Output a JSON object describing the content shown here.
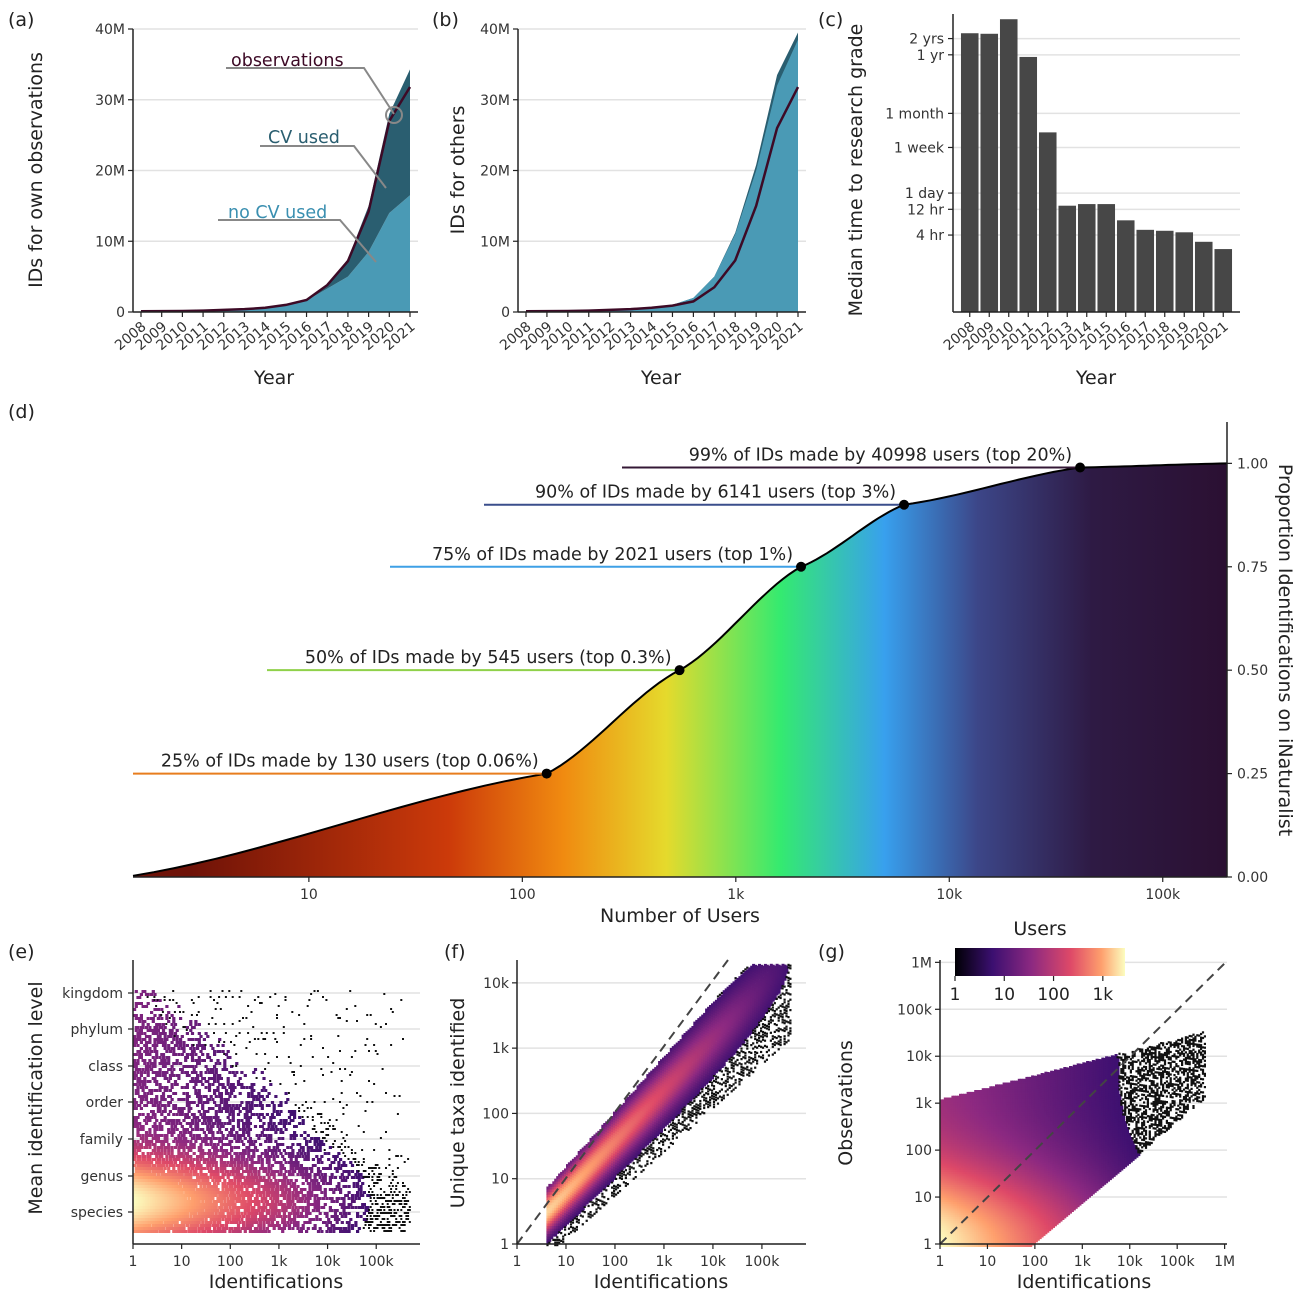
{
  "chart_data": [
    {
      "panel": "(a)",
      "type": "area",
      "xlabel": "Year",
      "ylabel": "IDs for own observations",
      "x": [
        "2008",
        "2009",
        "2010",
        "2011",
        "2012",
        "2013",
        "2014",
        "2015",
        "2016",
        "2017",
        "2018",
        "2019",
        "2020",
        "2021"
      ],
      "ylim": [
        0,
        40000000
      ],
      "ytick_values": [
        0,
        10000000,
        20000000,
        30000000,
        40000000
      ],
      "ytick_labels": [
        "0",
        "10M",
        "20M",
        "30M",
        "40M"
      ],
      "grid": "horizontal",
      "series": [
        {
          "name": "no CV used",
          "type": "area",
          "color": "#4a9ab5",
          "values": [
            0.1,
            0.1,
            0.15,
            0.2,
            0.3,
            0.4,
            0.6,
            0.9,
            1.6,
            3.3,
            5.0,
            8.5,
            14.0,
            16.5
          ],
          "unit": "M"
        },
        {
          "name": "CV used",
          "type": "area",
          "color": "#2a5e70",
          "values": [
            0,
            0,
            0,
            0,
            0,
            0,
            0,
            0,
            0.1,
            0.5,
            2.5,
            6.5,
            14.0,
            17.8
          ],
          "unit": "M",
          "stacked": true
        },
        {
          "name": "observations",
          "type": "line",
          "color": "#3d0a26",
          "values": [
            0.1,
            0.12,
            0.15,
            0.2,
            0.3,
            0.4,
            0.6,
            1.0,
            1.7,
            3.8,
            7.2,
            14.2,
            27.0,
            31.8
          ],
          "unit": "M"
        }
      ]
    },
    {
      "panel": "(b)",
      "type": "area",
      "xlabel": "Year",
      "ylabel": "IDs for others",
      "x": [
        "2008",
        "2009",
        "2010",
        "2011",
        "2012",
        "2013",
        "2014",
        "2015",
        "2016",
        "2017",
        "2018",
        "2019",
        "2020",
        "2021"
      ],
      "ylim": [
        0,
        40000000
      ],
      "ytick_values": [
        0,
        10000000,
        20000000,
        30000000,
        40000000
      ],
      "ytick_labels": [
        "0",
        "10M",
        "20M",
        "30M",
        "40M"
      ],
      "grid": "horizontal",
      "series": [
        {
          "type": "area",
          "color": "#4a9ab5",
          "values": [
            0.1,
            0.1,
            0.15,
            0.2,
            0.3,
            0.4,
            0.6,
            1.0,
            2.0,
            5.0,
            11.0,
            20.0,
            32.0,
            38.5
          ],
          "unit": "M"
        },
        {
          "type": "area",
          "color": "#2a5e70",
          "values": [
            0.1,
            0.1,
            0.15,
            0.2,
            0.3,
            0.4,
            0.6,
            1.0,
            2.0,
            5.0,
            11.2,
            20.8,
            33.5,
            39.5
          ],
          "unit": "M"
        },
        {
          "type": "line",
          "color": "#3d0a26",
          "values": [
            0.1,
            0.12,
            0.15,
            0.2,
            0.3,
            0.4,
            0.6,
            0.9,
            1.5,
            3.5,
            7.3,
            15.0,
            26.0,
            31.8
          ],
          "unit": "M"
        }
      ]
    },
    {
      "panel": "(c)",
      "type": "bar",
      "xlabel": "Year",
      "ylabel": "Median time to research grade",
      "categories": [
        "2008",
        "2009",
        "2010",
        "2011",
        "2012",
        "2013",
        "2014",
        "2015",
        "2016",
        "2017",
        "2018",
        "2019",
        "2020",
        "2021"
      ],
      "values_hours": [
        22000,
        21500,
        40000,
        8000,
        320,
        14,
        15,
        15,
        7.5,
        5,
        4.8,
        4.5,
        3,
        2.2
      ],
      "scale": "log",
      "ylim_hours": [
        0.15,
        50000
      ],
      "ytick_hours": [
        4,
        12,
        24,
        168,
        720,
        8760,
        17520
      ],
      "ytick_labels": [
        "4 hr",
        "12 hr",
        "1 day",
        "1 week",
        "1 month",
        "1 yr",
        "2 yrs"
      ],
      "color": "#474747",
      "grid": "horizontal"
    },
    {
      "panel": "(d)",
      "type": "line",
      "xlabel": "Number of Users",
      "ylabel": "Proportion Identifications on iNaturalist",
      "xscale": "log",
      "xlim": [
        1.5,
        200000
      ],
      "ylim": [
        0,
        1.1
      ],
      "xtick_values": [
        10,
        100,
        1000,
        10000,
        100000
      ],
      "xtick_labels": [
        "10",
        "100",
        "1k",
        "10k",
        "100k"
      ],
      "ytick_values": [
        0,
        0.25,
        0.5,
        0.75,
        1.0
      ],
      "ytick_labels": [
        "0.00",
        "0.25",
        "0.50",
        "0.75",
        "1.00"
      ],
      "yaxis_position": "right",
      "annotations": [
        {
          "users": 130,
          "prop": 0.25,
          "text": "25% of IDs made by 130 users (top 0.06%)",
          "color": "#e87d1e"
        },
        {
          "users": 545,
          "prop": 0.5,
          "text": "50% of IDs made by 545 users (top 0.3%)",
          "color": "#8fd14a"
        },
        {
          "users": 2021,
          "prop": 0.75,
          "text": "75% of IDs made by 2021 users (top 1%)",
          "color": "#3fa0e6"
        },
        {
          "users": 6141,
          "prop": 0.9,
          "text": "90% of IDs made by 6141 users (top 3%)",
          "color": "#3a4e8c"
        },
        {
          "users": 40998,
          "prop": 0.99,
          "text": "99% of IDs made by 40998 users (top 20%)",
          "color": "#341836"
        }
      ]
    },
    {
      "panel": "(e)",
      "type": "heatmap",
      "xlabel": "Identifications",
      "ylabel": "Mean identification level",
      "xscale": "log",
      "xtick_values": [
        1,
        10,
        100,
        1000,
        10000,
        100000
      ],
      "xtick_labels": [
        "1",
        "10",
        "100",
        "1k",
        "10k",
        "100k"
      ],
      "ycategories": [
        "species",
        "genus",
        "family",
        "order",
        "class",
        "phylum",
        "kingdom"
      ]
    },
    {
      "panel": "(f)",
      "type": "heatmap",
      "xlabel": "Identifications",
      "ylabel": "Unique taxa identified",
      "xscale": "log",
      "yscale": "log",
      "xtick_values": [
        1,
        10,
        100,
        1000,
        10000,
        100000
      ],
      "xtick_labels": [
        "1",
        "10",
        "100",
        "1k",
        "10k",
        "100k"
      ],
      "ytick_values": [
        1,
        10,
        100,
        1000,
        10000
      ],
      "ytick_labels": [
        "1",
        "10",
        "100",
        "1k",
        "10k"
      ],
      "reference_line": "y = x"
    },
    {
      "panel": "(g)",
      "type": "heatmap",
      "xlabel": "Identifications",
      "ylabel": "Observations",
      "xscale": "log",
      "yscale": "log",
      "xtick_values": [
        1,
        10,
        100,
        1000,
        10000,
        100000,
        1000000
      ],
      "xtick_labels": [
        "1",
        "10",
        "100",
        "1k",
        "10k",
        "100k",
        "1M"
      ],
      "ytick_values": [
        1,
        10,
        100,
        1000,
        10000,
        100000,
        1000000
      ],
      "ytick_labels": [
        "1",
        "10",
        "100",
        "1k",
        "10k",
        "100k",
        "1M"
      ],
      "reference_line": "y = x",
      "colorbar": {
        "title": "Users",
        "scale": "log",
        "tick_values": [
          1,
          10,
          100,
          1000
        ],
        "tick_labels": [
          "1",
          "10",
          "100",
          "1k"
        ]
      }
    }
  ]
}
